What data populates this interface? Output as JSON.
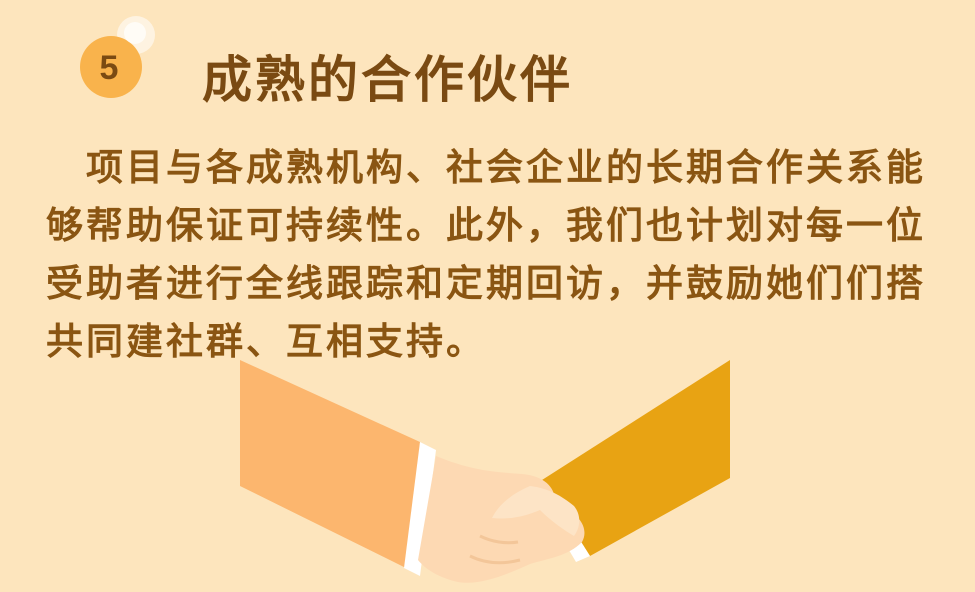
{
  "badge": {
    "number": "5"
  },
  "title": "成熟的合作伙伴",
  "body": "项目与各成熟机构、社会企业的长期合作关系能够帮助保证可持续性。此外，我们也计划对每一位受助者进行全线跟踪和定期回访，并鼓励她们们搭共同建社群、互相支持。",
  "illustration": {
    "icon": "handshake-icon"
  },
  "colors": {
    "background": "#fde5bd",
    "accent": "#f9b34c",
    "text": "#7a4a12",
    "left_sleeve": "#fcb66e",
    "right_sleeve": "#e8a313",
    "hand": "#fdd9b3"
  }
}
